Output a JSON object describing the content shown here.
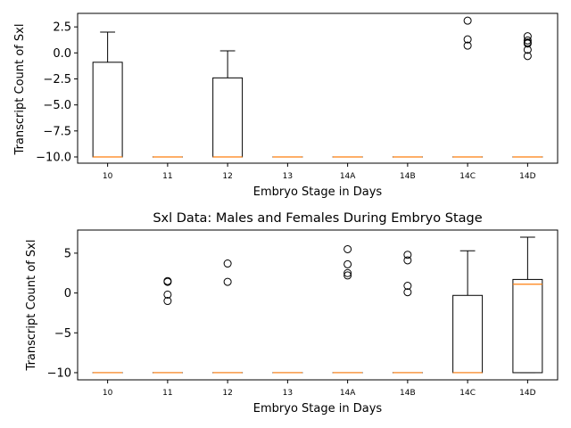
{
  "chart_data": [
    {
      "type": "box",
      "title": "",
      "xlabel": "Embryo Stage in Days",
      "ylabel": "Transcript Count of Sxl",
      "ylim": [
        -10.6,
        3.8
      ],
      "yticks": [
        -10.0,
        -7.5,
        -5.0,
        -2.5,
        0.0,
        2.5
      ],
      "ytick_labels": [
        "−10.0",
        "−7.5",
        "−5.0",
        "−2.5",
        "0.0",
        "2.5"
      ],
      "categories": [
        "10",
        "11",
        "12",
        "13",
        "14A",
        "14B",
        "14C",
        "14D"
      ],
      "boxes": [
        {
          "whislo": -10,
          "q1": -10,
          "med": -10,
          "q3": -0.9,
          "whishi": 2.0,
          "fliers": []
        },
        {
          "whislo": -10,
          "q1": -10,
          "med": -10,
          "q3": -10,
          "whishi": -10,
          "fliers": []
        },
        {
          "whislo": -10,
          "q1": -10,
          "med": -10,
          "q3": -2.4,
          "whishi": 0.2,
          "fliers": []
        },
        {
          "whislo": -10,
          "q1": -10,
          "med": -10,
          "q3": -10,
          "whishi": -10,
          "fliers": []
        },
        {
          "whislo": -10,
          "q1": -10,
          "med": -10,
          "q3": -10,
          "whishi": -10,
          "fliers": []
        },
        {
          "whislo": -10,
          "q1": -10,
          "med": -10,
          "q3": -10,
          "whishi": -10,
          "fliers": []
        },
        {
          "whislo": -10,
          "q1": -10,
          "med": -10,
          "q3": -10,
          "whishi": -10,
          "fliers": [
            3.1,
            1.3,
            0.7
          ]
        },
        {
          "whislo": -10,
          "q1": -10,
          "med": -10,
          "q3": -10,
          "whishi": -10,
          "fliers": [
            1.6,
            1.2,
            1.0,
            0.9,
            0.3,
            -0.3
          ]
        }
      ]
    },
    {
      "type": "box",
      "title": "Sxl Data: Males and Females During Embryo Stage",
      "xlabel": "Embryo Stage in Days",
      "ylabel": "Transcript Count of Sxl",
      "ylim": [
        -10.9,
        7.9
      ],
      "yticks": [
        -10,
        -5,
        0,
        5
      ],
      "ytick_labels": [
        "−10",
        "−5",
        "0",
        "5"
      ],
      "categories": [
        "10",
        "11",
        "12",
        "13",
        "14A",
        "14B",
        "14C",
        "14D"
      ],
      "boxes": [
        {
          "whislo": -10,
          "q1": -10,
          "med": -10,
          "q3": -10,
          "whishi": -10,
          "fliers": []
        },
        {
          "whislo": -10,
          "q1": -10,
          "med": -10,
          "q3": -10,
          "whishi": -10,
          "fliers": [
            1.5,
            1.4,
            -0.2,
            -1.0
          ]
        },
        {
          "whislo": -10,
          "q1": -10,
          "med": -10,
          "q3": -10,
          "whishi": -10,
          "fliers": [
            3.7,
            1.4
          ]
        },
        {
          "whislo": -10,
          "q1": -10,
          "med": -10,
          "q3": -10,
          "whishi": -10,
          "fliers": []
        },
        {
          "whislo": -10,
          "q1": -10,
          "med": -10,
          "q3": -10,
          "whishi": -10,
          "fliers": [
            5.5,
            3.6,
            2.5,
            2.2
          ]
        },
        {
          "whislo": -10,
          "q1": -10,
          "med": -10,
          "q3": -10,
          "whishi": -10,
          "fliers": [
            4.8,
            4.1,
            0.9,
            0.1
          ]
        },
        {
          "whislo": -10,
          "q1": -10,
          "med": -10,
          "q3": -0.3,
          "whishi": 5.3,
          "fliers": []
        },
        {
          "whislo": -10,
          "q1": -10,
          "med": 1.1,
          "q3": 1.7,
          "whishi": 7.0,
          "fliers": []
        }
      ]
    }
  ],
  "colors": {
    "box": "#000000",
    "median": "#ff7f0e",
    "background": "#ffffff"
  }
}
